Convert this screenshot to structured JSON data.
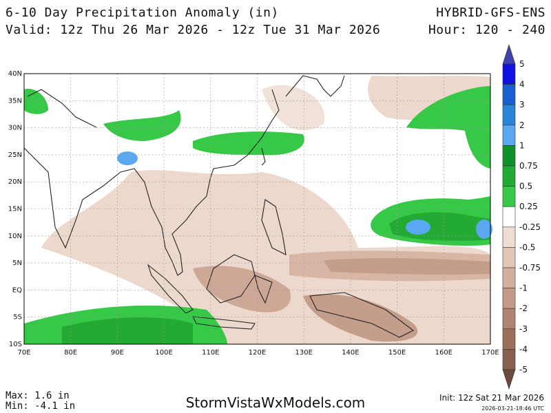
{
  "header": {
    "title": "6-10 Day Precipitation Anomaly (in)",
    "valid": "Valid: 12z Thu 26 Mar 2026 - 12z Tue 31 Mar 2026",
    "model": "HYBRID-GFS-ENS",
    "hour": "Hour: 120 - 240"
  },
  "map": {
    "lat_labels": [
      "40N",
      "35N",
      "30N",
      "25N",
      "20N",
      "15N",
      "10N",
      "5N",
      "EQ",
      "5S",
      "10S"
    ],
    "lon_labels": [
      "70E",
      "80E",
      "90E",
      "100E",
      "110E",
      "120E",
      "130E",
      "140E",
      "150E",
      "160E",
      "170E"
    ]
  },
  "colorbar": {
    "labels": [
      "5",
      "4",
      "3",
      "2",
      "1",
      "0.75",
      "0.5",
      "0.25",
      "-0.25",
      "-0.5",
      "-0.75",
      "-1",
      "-2",
      "-3",
      "-4",
      "-5"
    ],
    "colors": [
      "#1010e0",
      "#1a5fd0",
      "#2a84d8",
      "#5aa8f0",
      "#10902a",
      "#22aa32",
      "#38c848",
      "#ffffff",
      "#f0ddd2",
      "#e2c6b6",
      "#d3b09e",
      "#c49b88",
      "#b08472",
      "#9c6e5c",
      "#886050"
    ],
    "top_color": "#4040b0",
    "bottom_color": "#6e4a3c"
  },
  "footer": {
    "max": "Max: 1.6 in",
    "min": "Min: -4.1 in",
    "site": "StormVistaWxModels.com",
    "init": "Init: 12z Sat 21 Mar 2026",
    "stamp": "2026-03-21-18:46 UTC"
  }
}
